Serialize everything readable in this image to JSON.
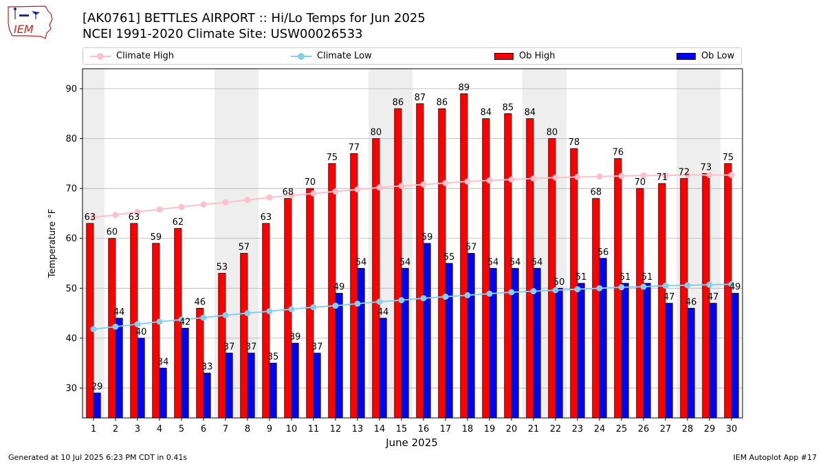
{
  "header": {
    "logo_text": "IEM",
    "title_line1": "[AK0761] BETTLES AIRPORT :: Hi/Lo Temps for Jun 2025",
    "title_line2": "NCEI 1991-2020 Climate Site: USW00026533"
  },
  "legend": {
    "climate_high": "Climate High",
    "climate_low": "Climate Low",
    "ob_high": "Ob High",
    "ob_low": "Ob Low"
  },
  "colors": {
    "ob_high": "#ff0000",
    "ob_low": "#0000ff",
    "climate_high": "#ffc0cb",
    "climate_low": "#87ceeb",
    "weekend_band": "#eeeeee",
    "grid": "#b0b0b0"
  },
  "chart_data": {
    "type": "bar",
    "xlabel": "June 2025",
    "ylabel": "Temperature °F",
    "ylim": [
      24,
      94
    ],
    "yticks": [
      30,
      40,
      50,
      60,
      70,
      80,
      90
    ],
    "grid": "horizontal",
    "legend_position": "top",
    "categories": [
      "1",
      "2",
      "3",
      "4",
      "5",
      "6",
      "7",
      "8",
      "9",
      "10",
      "11",
      "12",
      "13",
      "14",
      "15",
      "16",
      "17",
      "18",
      "19",
      "20",
      "21",
      "22",
      "23",
      "24",
      "25",
      "26",
      "27",
      "28",
      "29",
      "30"
    ],
    "shaded_days": [
      "1",
      "7",
      "8",
      "14",
      "15",
      "21",
      "22",
      "28",
      "29"
    ],
    "series": [
      {
        "name": "Ob High",
        "kind": "bar",
        "values": [
          63,
          60,
          63,
          59,
          62,
          46,
          53,
          57,
          63,
          68,
          70,
          75,
          77,
          80,
          86,
          87,
          86,
          89,
          84,
          85,
          84,
          80,
          78,
          68,
          76,
          70,
          71,
          72,
          73,
          75
        ]
      },
      {
        "name": "Ob Low",
        "kind": "bar",
        "values": [
          29,
          44,
          40,
          34,
          42,
          33,
          37,
          37,
          35,
          39,
          37,
          49,
          54,
          44,
          54,
          59,
          55,
          57,
          54,
          54,
          54,
          50,
          51,
          56,
          51,
          51,
          47,
          46,
          47,
          49
        ]
      },
      {
        "name": "Climate High",
        "kind": "line",
        "values": [
          64.2,
          64.7,
          65.3,
          65.8,
          66.3,
          66.8,
          67.2,
          67.7,
          68.2,
          68.6,
          69.0,
          69.4,
          69.8,
          70.2,
          70.5,
          70.8,
          71.1,
          71.4,
          71.6,
          71.8,
          72.0,
          72.2,
          72.3,
          72.4,
          72.5,
          72.6,
          72.6,
          72.7,
          72.7,
          72.7
        ]
      },
      {
        "name": "Climate Low",
        "kind": "line",
        "values": [
          41.8,
          42.3,
          42.8,
          43.3,
          43.7,
          44.1,
          44.6,
          45.0,
          45.4,
          45.8,
          46.2,
          46.5,
          46.9,
          47.3,
          47.6,
          48.0,
          48.3,
          48.6,
          48.9,
          49.2,
          49.4,
          49.6,
          49.8,
          50.0,
          50.2,
          50.3,
          50.5,
          50.6,
          50.7,
          50.8
        ]
      }
    ]
  },
  "footer": {
    "generated": "Generated at 10 Jul 2025 6:23 PM CDT in 0.41s",
    "app": "IEM Autoplot App #17"
  }
}
